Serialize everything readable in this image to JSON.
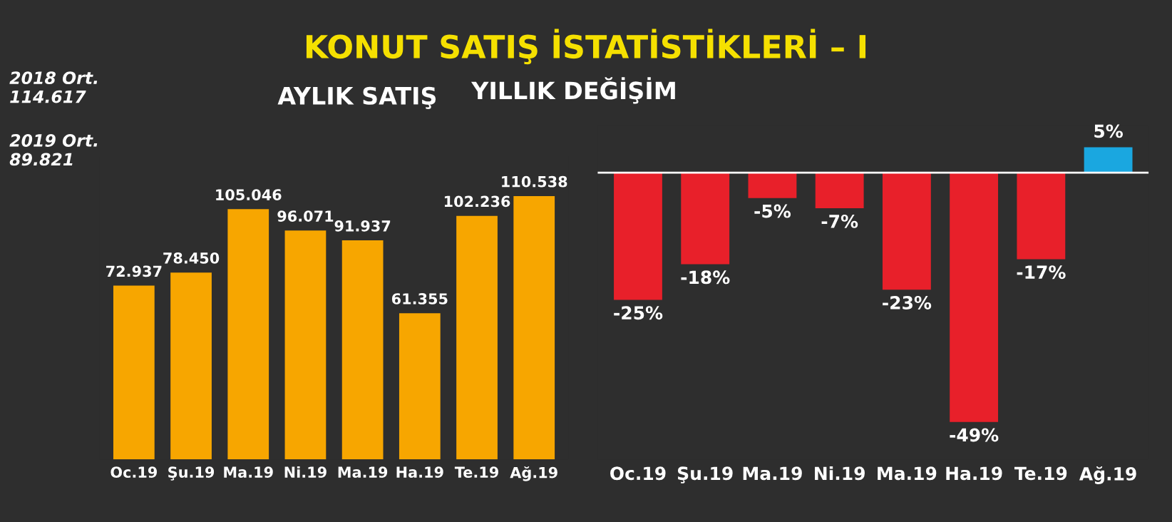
{
  "chart_data": [
    {
      "type": "bar",
      "title": "AYLIK SATIŞ",
      "categories": [
        "Oc.19",
        "Şu.19",
        "Ma.19",
        "Ni.19",
        "Ma.19",
        "Ha.19",
        "Te.19",
        "Ağ.19"
      ],
      "values": [
        72937,
        78450,
        105046,
        96071,
        91937,
        61355,
        102236,
        110538
      ],
      "value_labels": [
        "72.937",
        "78.450",
        "105.046",
        "96.071",
        "91.937",
        "61.355",
        "102.236",
        "110.538"
      ],
      "color": "#f7a600",
      "tick_labels": "x",
      "grid": false,
      "legend": false,
      "annotations": [
        "2018 Ort.\n114.617",
        "2019 Ort.\n89.821",
        "KONUT SATIŞ İSTATİSTİKLERİ – I"
      ]
    },
    {
      "type": "bar",
      "title": "YILLIK DEĞİŞİM",
      "categories": [
        "Oc.19",
        "Şu.19",
        "Ma.19",
        "Ni.19",
        "Ma.19",
        "Ha.19",
        "Te.19",
        "Ağ.19"
      ],
      "values": [
        -25,
        -18,
        -5,
        -7,
        -23,
        -49,
        -17,
        5
      ],
      "value_labels": [
        "-25%",
        "-18%",
        "-5%",
        "-7%",
        "-23%",
        "-49%",
        "-17%",
        "5%"
      ],
      "colors": [
        "#e8202a",
        "#e8202a",
        "#e8202a",
        "#e8202a",
        "#e8202a",
        "#e8202a",
        "#e8202a",
        "#1aa7e0"
      ],
      "tick_labels": "x",
      "grid": false,
      "legend": false
    }
  ]
}
